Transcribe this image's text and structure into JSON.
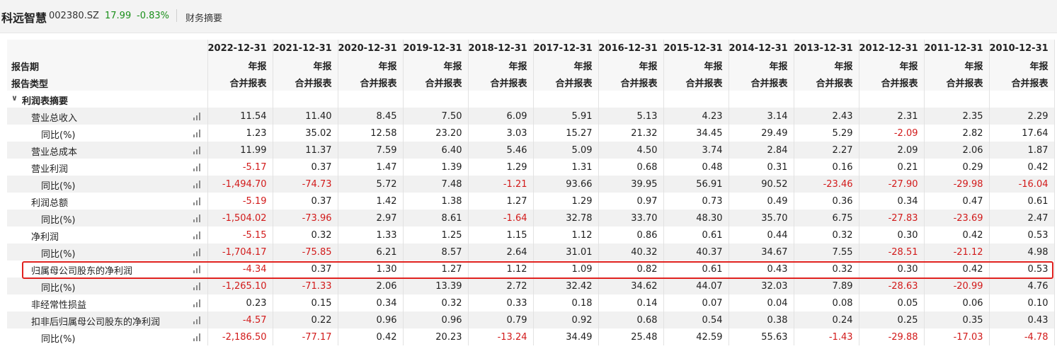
{
  "header": {
    "company": "科远智慧",
    "code": "002380.SZ",
    "price": "17.99",
    "change": "-0.83%",
    "tab": "财务摘要"
  },
  "table": {
    "row_labels": {
      "period": "报告期",
      "report_type": "报告类型"
    },
    "periods": [
      "2022-12-31",
      "2021-12-31",
      "2020-12-31",
      "2019-12-31",
      "2018-12-31",
      "2017-12-31",
      "2016-12-31",
      "2015-12-31",
      "2014-12-31",
      "2013-12-31",
      "2012-12-31",
      "2011-12-31",
      "2010-12-31"
    ],
    "report_type": "年报",
    "report_sub": "合并报表",
    "section": "利润表摘要",
    "rows": [
      {
        "label": "营业总收入",
        "indent": 0,
        "values": [
          "11.54",
          "11.40",
          "8.45",
          "7.50",
          "6.09",
          "5.91",
          "5.13",
          "4.23",
          "3.14",
          "2.43",
          "2.31",
          "2.35",
          "2.29"
        ]
      },
      {
        "label": "同比(%)",
        "indent": 1,
        "values": [
          "1.23",
          "35.02",
          "12.58",
          "23.20",
          "3.03",
          "15.27",
          "21.32",
          "34.45",
          "29.49",
          "5.29",
          "-2.09",
          "2.82",
          "17.64"
        ]
      },
      {
        "label": "营业总成本",
        "indent": 0,
        "values": [
          "11.99",
          "11.37",
          "7.59",
          "6.40",
          "5.46",
          "5.09",
          "4.50",
          "3.74",
          "2.84",
          "2.27",
          "2.09",
          "2.06",
          "1.87"
        ]
      },
      {
        "label": "营业利润",
        "indent": 0,
        "values": [
          "-5.17",
          "0.37",
          "1.47",
          "1.39",
          "1.29",
          "1.31",
          "0.68",
          "0.48",
          "0.31",
          "0.16",
          "0.21",
          "0.29",
          "0.42"
        ]
      },
      {
        "label": "同比(%)",
        "indent": 1,
        "values": [
          "-1,494.70",
          "-74.73",
          "5.72",
          "7.48",
          "-1.21",
          "93.66",
          "39.95",
          "56.91",
          "90.52",
          "-23.46",
          "-27.90",
          "-29.98",
          "-16.04"
        ]
      },
      {
        "label": "利润总额",
        "indent": 0,
        "values": [
          "-5.19",
          "0.37",
          "1.42",
          "1.38",
          "1.27",
          "1.29",
          "0.97",
          "0.73",
          "0.49",
          "0.36",
          "0.34",
          "0.47",
          "0.61"
        ]
      },
      {
        "label": "同比(%)",
        "indent": 1,
        "values": [
          "-1,504.02",
          "-73.96",
          "2.97",
          "8.61",
          "-1.64",
          "32.78",
          "33.70",
          "48.30",
          "35.70",
          "6.75",
          "-27.83",
          "-23.69",
          "2.47"
        ]
      },
      {
        "label": "净利润",
        "indent": 0,
        "values": [
          "-5.15",
          "0.32",
          "1.33",
          "1.25",
          "1.15",
          "1.12",
          "0.86",
          "0.61",
          "0.44",
          "0.32",
          "0.30",
          "0.42",
          "0.53"
        ]
      },
      {
        "label": "同比(%)",
        "indent": 1,
        "values": [
          "-1,704.17",
          "-75.85",
          "6.21",
          "8.57",
          "2.64",
          "31.01",
          "40.32",
          "40.37",
          "34.67",
          "7.55",
          "-28.51",
          "-21.12",
          "4.98"
        ]
      },
      {
        "label": "归属母公司股东的净利润",
        "indent": 0,
        "highlight": true,
        "values": [
          "-4.34",
          "0.37",
          "1.30",
          "1.27",
          "1.12",
          "1.09",
          "0.82",
          "0.61",
          "0.43",
          "0.32",
          "0.30",
          "0.42",
          "0.53"
        ]
      },
      {
        "label": "同比(%)",
        "indent": 1,
        "values": [
          "-1,265.10",
          "-71.33",
          "2.06",
          "13.39",
          "2.72",
          "32.42",
          "34.62",
          "44.07",
          "32.03",
          "7.89",
          "-28.63",
          "-20.99",
          "4.76"
        ]
      },
      {
        "label": "非经常性损益",
        "indent": 0,
        "values": [
          "0.23",
          "0.15",
          "0.34",
          "0.32",
          "0.33",
          "0.18",
          "0.14",
          "0.07",
          "0.04",
          "0.08",
          "0.05",
          "0.06",
          "0.10"
        ]
      },
      {
        "label": "扣非后归属母公司股东的净利润",
        "indent": 0,
        "values": [
          "-4.57",
          "0.22",
          "0.96",
          "0.96",
          "0.79",
          "0.92",
          "0.68",
          "0.54",
          "0.38",
          "0.24",
          "0.25",
          "0.35",
          "0.43"
        ]
      },
      {
        "label": "同比(%)",
        "indent": 1,
        "values": [
          "-2,186.50",
          "-77.17",
          "0.42",
          "20.23",
          "-13.24",
          "34.49",
          "25.48",
          "42.59",
          "55.63",
          "-1.43",
          "-29.88",
          "-17.03",
          "-4.78"
        ]
      }
    ]
  },
  "colors": {
    "negative": "#d21a1a",
    "up_green": "#1a8f1a",
    "highlight_border": "#e0221f"
  },
  "icons": {
    "expand": "chevron-down-icon",
    "trend": "bar-chart-icon"
  }
}
